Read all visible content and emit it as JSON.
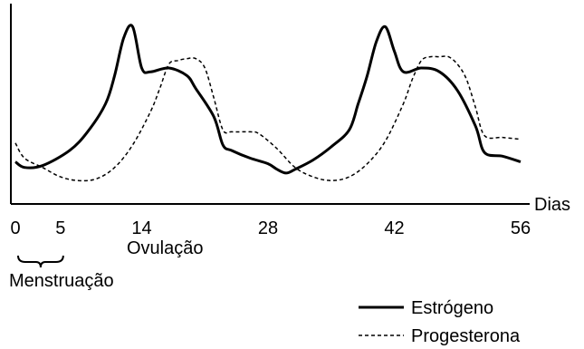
{
  "chart_data": {
    "type": "line",
    "xlabel": "Dias",
    "ylabel": "",
    "title": "",
    "x_ticks": [
      0,
      5,
      14,
      28,
      42,
      56
    ],
    "x_tick_labels": [
      "0",
      "5",
      "14",
      "28",
      "42",
      "56"
    ],
    "xlim": [
      0,
      56
    ],
    "ylim": [
      0,
      100
    ],
    "y_axis_labeled": false,
    "grid": false,
    "legend_position": "bottom-right",
    "annotations": [
      {
        "text": "Ovulação",
        "x": 14
      },
      {
        "text": "Menstruação",
        "x_range": [
          0,
          5
        ]
      }
    ],
    "series": [
      {
        "name": "Estrógeno",
        "style": "solid",
        "color": "#000000",
        "x": [
          0,
          1,
          3,
          6,
          8,
          10,
          11,
          12,
          13,
          14,
          15,
          17,
          19,
          20,
          22,
          23,
          24,
          26,
          28,
          29,
          30,
          31,
          33,
          35,
          37,
          38,
          39,
          40,
          41,
          42,
          43,
          45,
          47,
          49,
          51,
          52,
          54,
          56
        ],
        "values": [
          21,
          18,
          19,
          27,
          37,
          52,
          67,
          87,
          93,
          71,
          69,
          71,
          67,
          60,
          45,
          30,
          27,
          23,
          20,
          17,
          15,
          17,
          22,
          29,
          38,
          52,
          67,
          85,
          93,
          80,
          69,
          71,
          69,
          59,
          40,
          26,
          24,
          21
        ]
      },
      {
        "name": "Progesterona",
        "style": "dashed",
        "color": "#000000",
        "x": [
          0,
          1,
          3,
          5,
          7,
          9,
          11,
          13,
          15,
          16,
          17,
          18,
          19,
          20,
          21,
          22,
          23,
          24,
          26,
          27,
          29,
          31,
          33,
          35,
          37,
          39,
          41,
          43,
          44,
          45,
          46,
          47,
          48,
          49,
          50,
          51,
          52,
          54,
          56
        ],
        "values": [
          31,
          23,
          18,
          13,
          11,
          12,
          18,
          30,
          48,
          60,
          73,
          75,
          76,
          76,
          71,
          55,
          38,
          37,
          37,
          36,
          28,
          18,
          13,
          11,
          13,
          20,
          32,
          52,
          65,
          75,
          77,
          77,
          77,
          73,
          65,
          50,
          35,
          34,
          33
        ]
      }
    ]
  }
}
